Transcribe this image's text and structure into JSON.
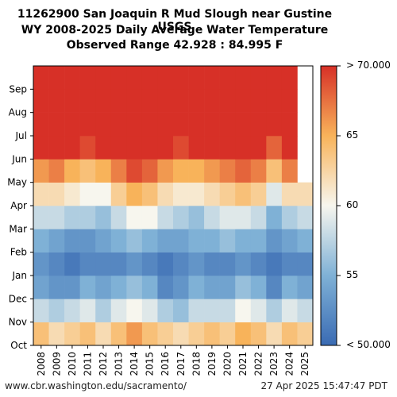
{
  "chart_data": {
    "type": "heatmap",
    "title_lines": [
      "11262900 San Joaquin R Mud Slough near Gustine USGS",
      "WY 2008-2025 Daily Average Water Temperature",
      "Observed Range 42.928 : 84.995 F"
    ],
    "x_categories": [
      "2008",
      "2009",
      "2010",
      "2011",
      "2012",
      "2013",
      "2014",
      "2015",
      "2016",
      "2017",
      "2018",
      "2019",
      "2020",
      "2021",
      "2022",
      "2023",
      "2024",
      "2025"
    ],
    "y_months": [
      "Oct",
      "Nov",
      "Dec",
      "Jan",
      "Feb",
      "Mar",
      "Apr",
      "May",
      "Jun",
      "Jul",
      "Aug",
      "Sep"
    ],
    "colorbar": {
      "min": 50,
      "max": 70,
      "ticks": [
        "< 50.000",
        "55",
        "60",
        "65",
        "> 70.000"
      ],
      "colors": [
        "#3a6bb3",
        "#7fb1d6",
        "#f7f6ee",
        "#f8b35a",
        "#d73027"
      ]
    },
    "monthly_means_F": [
      [
        64,
        62,
        63,
        64,
        62,
        64,
        66,
        64,
        63,
        62,
        63,
        64,
        63,
        65,
        64,
        62,
        64,
        63
      ],
      [
        58,
        57,
        58,
        59,
        57,
        59,
        60,
        59,
        57,
        56,
        58,
        58,
        58,
        60,
        59,
        57,
        59,
        58
      ],
      [
        54,
        53,
        53,
        55,
        54,
        55,
        56,
        55,
        52,
        53,
        55,
        54,
        54,
        56,
        55,
        52,
        55,
        54
      ],
      [
        53,
        52,
        51,
        52,
        52,
        52,
        53,
        52,
        51,
        52,
        53,
        52,
        52,
        53,
        52,
        51,
        52,
        52
      ],
      [
        55,
        54,
        53,
        53,
        54,
        55,
        56,
        55,
        54,
        54,
        55,
        55,
        56,
        55,
        55,
        53,
        54,
        55
      ],
      [
        58,
        58,
        57,
        57,
        56,
        58,
        60,
        60,
        58,
        57,
        56,
        58,
        59,
        59,
        58,
        55,
        57,
        58
      ],
      [
        62,
        62,
        61,
        60,
        60,
        63,
        65,
        64,
        62,
        61,
        61,
        62,
        63,
        64,
        63,
        59,
        62,
        62
      ],
      [
        66,
        67,
        65,
        64,
        65,
        67,
        69,
        68,
        66,
        65,
        65,
        66,
        67,
        68,
        67,
        64,
        67,
        null
      ],
      [
        70,
        70,
        70,
        69,
        70,
        70,
        70,
        70,
        70,
        69,
        70,
        70,
        70,
        70,
        70,
        68,
        70,
        null
      ],
      [
        70,
        70,
        70,
        70,
        70,
        70,
        70,
        70,
        70,
        70,
        70,
        70,
        70,
        70,
        70,
        70,
        70,
        null
      ],
      [
        70,
        70,
        70,
        70,
        70,
        70,
        70,
        70,
        70,
        70,
        70,
        70,
        70,
        70,
        70,
        70,
        70,
        null
      ],
      [
        70,
        70,
        70,
        70,
        70,
        70,
        70,
        70,
        70,
        70,
        70,
        70,
        70,
        70,
        70,
        70,
        70,
        null
      ]
    ]
  },
  "footer": {
    "left": "www.cbr.washington.edu/sacramento/",
    "right": "27 Apr 2025 15:47:47 PDT"
  }
}
